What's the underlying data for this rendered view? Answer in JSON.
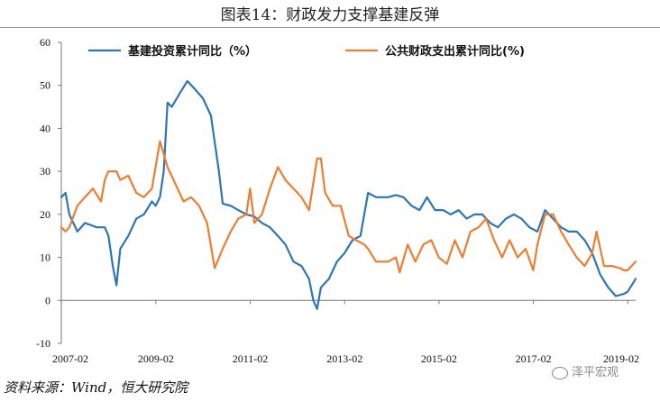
{
  "figure": {
    "title": "图表14：财政发力支撑基建反弹",
    "source": "资料来源：Wind，恒大研究院",
    "watermark": "泽平宏观"
  },
  "chart_data": {
    "type": "line",
    "title": "",
    "xlabel": "",
    "ylabel": "",
    "ylim": [
      -10,
      60
    ],
    "yticks": [
      -10,
      0,
      10,
      20,
      30,
      40,
      50,
      60
    ],
    "xlim": [
      2007.08,
      2019.25
    ],
    "xtick_labels": [
      "2007-02",
      "2009-02",
      "2011-02",
      "2013-02",
      "2015-02",
      "2017-02",
      "2019-02"
    ],
    "grid": false,
    "legend_position": "top",
    "series": [
      {
        "name": "基建投资累计同比（%）",
        "color": "#2E75B6",
        "points": [
          [
            2007.08,
            24
          ],
          [
            2007.17,
            25
          ],
          [
            2007.25,
            20
          ],
          [
            2007.42,
            16
          ],
          [
            2007.58,
            18
          ],
          [
            2007.83,
            17
          ],
          [
            2008.0,
            17
          ],
          [
            2008.08,
            15
          ],
          [
            2008.17,
            8
          ],
          [
            2008.25,
            3.5
          ],
          [
            2008.33,
            12
          ],
          [
            2008.5,
            15
          ],
          [
            2008.67,
            19
          ],
          [
            2008.83,
            20
          ],
          [
            2009.0,
            23
          ],
          [
            2009.08,
            22
          ],
          [
            2009.17,
            24
          ],
          [
            2009.25,
            30
          ],
          [
            2009.33,
            46
          ],
          [
            2009.42,
            45
          ],
          [
            2009.58,
            48
          ],
          [
            2009.75,
            51
          ],
          [
            2009.92,
            49
          ],
          [
            2010.08,
            47
          ],
          [
            2010.25,
            43
          ],
          [
            2010.42,
            30
          ],
          [
            2010.5,
            22.5
          ],
          [
            2010.67,
            22
          ],
          [
            2010.83,
            21
          ],
          [
            2011.0,
            20
          ],
          [
            2011.17,
            19.5
          ],
          [
            2011.33,
            18
          ],
          [
            2011.5,
            17
          ],
          [
            2011.67,
            15
          ],
          [
            2011.83,
            13
          ],
          [
            2012.0,
            9
          ],
          [
            2012.17,
            8
          ],
          [
            2012.33,
            5
          ],
          [
            2012.42,
            0
          ],
          [
            2012.5,
            -2
          ],
          [
            2012.58,
            3
          ],
          [
            2012.75,
            5
          ],
          [
            2012.92,
            9
          ],
          [
            2013.08,
            11
          ],
          [
            2013.25,
            14
          ],
          [
            2013.42,
            15
          ],
          [
            2013.58,
            25
          ],
          [
            2013.75,
            24
          ],
          [
            2014.0,
            24
          ],
          [
            2014.17,
            24.5
          ],
          [
            2014.33,
            24
          ],
          [
            2014.5,
            22
          ],
          [
            2014.67,
            21
          ],
          [
            2014.83,
            24
          ],
          [
            2015.0,
            21
          ],
          [
            2015.17,
            21
          ],
          [
            2015.33,
            20
          ],
          [
            2015.5,
            21
          ],
          [
            2015.67,
            19
          ],
          [
            2015.83,
            20
          ],
          [
            2016.0,
            20
          ],
          [
            2016.17,
            18
          ],
          [
            2016.33,
            17
          ],
          [
            2016.5,
            19
          ],
          [
            2016.67,
            20
          ],
          [
            2016.83,
            19
          ],
          [
            2017.0,
            17
          ],
          [
            2017.17,
            16
          ],
          [
            2017.33,
            21
          ],
          [
            2017.5,
            19
          ],
          [
            2017.67,
            17
          ],
          [
            2017.83,
            16
          ],
          [
            2018.0,
            16
          ],
          [
            2018.17,
            14
          ],
          [
            2018.33,
            11
          ],
          [
            2018.5,
            6
          ],
          [
            2018.67,
            3
          ],
          [
            2018.83,
            1
          ],
          [
            2019.0,
            1.5
          ],
          [
            2019.08,
            2
          ],
          [
            2019.25,
            5
          ]
        ]
      },
      {
        "name": "公共财政支出累计同比(%)",
        "color": "#ED7D31",
        "points": [
          [
            2007.08,
            17
          ],
          [
            2007.17,
            16
          ],
          [
            2007.25,
            17
          ],
          [
            2007.42,
            22
          ],
          [
            2007.58,
            24
          ],
          [
            2007.75,
            26
          ],
          [
            2007.92,
            23
          ],
          [
            2008.0,
            28
          ],
          [
            2008.08,
            30
          ],
          [
            2008.25,
            30
          ],
          [
            2008.33,
            28
          ],
          [
            2008.5,
            29
          ],
          [
            2008.67,
            25
          ],
          [
            2008.83,
            24
          ],
          [
            2009.0,
            26
          ],
          [
            2009.17,
            37
          ],
          [
            2009.33,
            31
          ],
          [
            2009.5,
            27
          ],
          [
            2009.67,
            23
          ],
          [
            2009.83,
            24
          ],
          [
            2010.0,
            22
          ],
          [
            2010.17,
            18
          ],
          [
            2010.33,
            7.5
          ],
          [
            2010.5,
            12
          ],
          [
            2010.67,
            16
          ],
          [
            2010.83,
            19
          ],
          [
            2011.0,
            20
          ],
          [
            2011.08,
            26
          ],
          [
            2011.17,
            18
          ],
          [
            2011.33,
            20
          ],
          [
            2011.5,
            26
          ],
          [
            2011.67,
            31
          ],
          [
            2011.83,
            28
          ],
          [
            2012.0,
            26
          ],
          [
            2012.17,
            24
          ],
          [
            2012.33,
            21
          ],
          [
            2012.5,
            33
          ],
          [
            2012.58,
            33
          ],
          [
            2012.67,
            25
          ],
          [
            2012.83,
            22
          ],
          [
            2013.0,
            22
          ],
          [
            2013.17,
            15
          ],
          [
            2013.33,
            14
          ],
          [
            2013.5,
            13
          ],
          [
            2013.58,
            12
          ],
          [
            2013.75,
            9
          ],
          [
            2014.0,
            9
          ],
          [
            2014.17,
            10
          ],
          [
            2014.25,
            6.5
          ],
          [
            2014.42,
            13
          ],
          [
            2014.58,
            9
          ],
          [
            2014.75,
            13
          ],
          [
            2014.92,
            14
          ],
          [
            2015.08,
            10
          ],
          [
            2015.25,
            8.5
          ],
          [
            2015.42,
            14
          ],
          [
            2015.58,
            10
          ],
          [
            2015.75,
            16
          ],
          [
            2015.92,
            17
          ],
          [
            2016.08,
            19
          ],
          [
            2016.25,
            14
          ],
          [
            2016.42,
            10
          ],
          [
            2016.58,
            14
          ],
          [
            2016.75,
            10
          ],
          [
            2016.92,
            12
          ],
          [
            2017.08,
            7
          ],
          [
            2017.17,
            13
          ],
          [
            2017.33,
            20
          ],
          [
            2017.5,
            20
          ],
          [
            2017.67,
            16
          ],
          [
            2017.83,
            13
          ],
          [
            2018.0,
            10
          ],
          [
            2018.17,
            8
          ],
          [
            2018.33,
            11
          ],
          [
            2018.42,
            16
          ],
          [
            2018.58,
            8
          ],
          [
            2018.75,
            8
          ],
          [
            2018.92,
            7.5
          ],
          [
            2019.0,
            7
          ],
          [
            2019.08,
            7
          ],
          [
            2019.25,
            9
          ]
        ]
      }
    ]
  }
}
